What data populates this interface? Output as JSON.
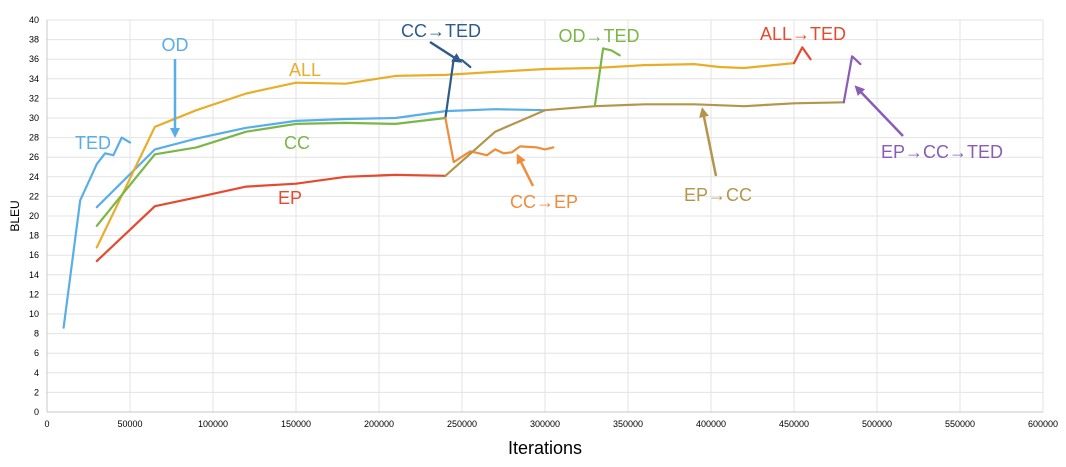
{
  "chart_data": {
    "type": "line",
    "title": "",
    "xlabel": "Iterations",
    "ylabel": "BLEU",
    "xlim": [
      0,
      600000
    ],
    "ylim": [
      0,
      40
    ],
    "grid": true,
    "legend": "inline labels",
    "x_ticks": [
      0,
      50000,
      100000,
      150000,
      200000,
      250000,
      300000,
      350000,
      400000,
      450000,
      500000,
      550000,
      600000
    ],
    "y_ticks": [
      0,
      2,
      4,
      6,
      8,
      10,
      12,
      14,
      16,
      18,
      20,
      22,
      24,
      26,
      28,
      30,
      32,
      34,
      36,
      38,
      40
    ],
    "series": [
      {
        "name": "TED",
        "color": "#5aaee8",
        "points": [
          [
            10000,
            8.6
          ],
          [
            20000,
            21.6
          ],
          [
            30000,
            25.3
          ],
          [
            35000,
            26.4
          ],
          [
            40000,
            26.2
          ],
          [
            45000,
            28.0
          ],
          [
            50000,
            27.5
          ]
        ]
      },
      {
        "name": "OD",
        "color": "#5aaee8",
        "points": [
          [
            30000,
            20.9
          ],
          [
            65000,
            26.8
          ],
          [
            90000,
            27.9
          ],
          [
            120000,
            29.0
          ],
          [
            150000,
            29.7
          ],
          [
            180000,
            29.9
          ],
          [
            210000,
            30.0
          ],
          [
            240000,
            30.7
          ],
          [
            270000,
            30.9
          ],
          [
            300000,
            30.8
          ]
        ]
      },
      {
        "name": "ALL",
        "color": "#e8ae2a",
        "points": [
          [
            30000,
            16.8
          ],
          [
            65000,
            29.1
          ],
          [
            90000,
            30.8
          ],
          [
            120000,
            32.5
          ],
          [
            150000,
            33.6
          ],
          [
            180000,
            33.5
          ],
          [
            210000,
            34.3
          ],
          [
            240000,
            34.4
          ],
          [
            270000,
            34.7
          ],
          [
            300000,
            35.0
          ],
          [
            330000,
            35.1
          ],
          [
            360000,
            35.4
          ],
          [
            390000,
            35.5
          ],
          [
            405000,
            35.2
          ],
          [
            420000,
            35.1
          ],
          [
            450000,
            35.6
          ]
        ]
      },
      {
        "name": "CC",
        "color": "#7ab648",
        "points": [
          [
            30000,
            19.0
          ],
          [
            65000,
            26.3
          ],
          [
            90000,
            27.0
          ],
          [
            120000,
            28.6
          ],
          [
            150000,
            29.4
          ],
          [
            180000,
            29.5
          ],
          [
            210000,
            29.4
          ],
          [
            240000,
            30.0
          ]
        ]
      },
      {
        "name": "EP",
        "color": "#e64a2e",
        "points": [
          [
            30000,
            15.4
          ],
          [
            65000,
            21.0
          ],
          [
            90000,
            21.9
          ],
          [
            120000,
            23.0
          ],
          [
            150000,
            23.3
          ],
          [
            180000,
            24.0
          ],
          [
            210000,
            24.2
          ],
          [
            240000,
            24.1
          ]
        ]
      },
      {
        "name": "CC→TED",
        "color": "#2e5c8a",
        "points": [
          [
            240000,
            30.0
          ],
          [
            245000,
            36.0
          ],
          [
            250000,
            35.9
          ],
          [
            255000,
            35.2
          ]
        ]
      },
      {
        "name": "CC→EP",
        "color": "#ef8d3a",
        "points": [
          [
            240000,
            30.0
          ],
          [
            245000,
            25.5
          ],
          [
            255000,
            26.6
          ],
          [
            265000,
            26.2
          ],
          [
            270000,
            26.8
          ],
          [
            275000,
            26.4
          ],
          [
            280000,
            26.5
          ],
          [
            285000,
            27.1
          ],
          [
            295000,
            27.0
          ],
          [
            300000,
            26.8
          ],
          [
            305000,
            27.0
          ]
        ]
      },
      {
        "name": "EP→CC",
        "color": "#b5954a",
        "points": [
          [
            240000,
            24.1
          ],
          [
            270000,
            28.6
          ],
          [
            300000,
            30.8
          ],
          [
            330000,
            31.2
          ],
          [
            360000,
            31.4
          ],
          [
            390000,
            31.4
          ],
          [
            420000,
            31.2
          ],
          [
            450000,
            31.5
          ],
          [
            480000,
            31.6
          ]
        ]
      },
      {
        "name": "OD→TED",
        "color": "#7ab648",
        "points": [
          [
            330000,
            31.2
          ],
          [
            335000,
            37.1
          ],
          [
            340000,
            36.9
          ],
          [
            345000,
            36.4
          ]
        ]
      },
      {
        "name": "ALL→TED",
        "color": "#e64a2e",
        "points": [
          [
            450000,
            35.6
          ],
          [
            455000,
            37.2
          ],
          [
            460000,
            36.0
          ]
        ]
      },
      {
        "name": "EP→CC→TED",
        "color": "#8a5cb5",
        "points": [
          [
            480000,
            31.6
          ],
          [
            485000,
            36.3
          ],
          [
            490000,
            35.5
          ]
        ]
      }
    ],
    "labels": [
      {
        "text": "TED",
        "color": "#5aaee8"
      },
      {
        "text": "OD",
        "color": "#5aaee8"
      },
      {
        "text": "ALL",
        "color": "#e8ae2a"
      },
      {
        "text": "CC",
        "color": "#7ab648"
      },
      {
        "text": "EP",
        "color": "#e64a2e"
      },
      {
        "text": "CC→TED",
        "color": "#2e5c8a"
      },
      {
        "text": "CC→EP",
        "color": "#ef8d3a"
      },
      {
        "text": "OD→TED",
        "color": "#7ab648"
      },
      {
        "text": "EP→CC",
        "color": "#b5954a"
      },
      {
        "text": "ALL→TED",
        "color": "#e64a2e"
      },
      {
        "text": "EP→CC→TED",
        "color": "#8a5cb5"
      }
    ]
  }
}
